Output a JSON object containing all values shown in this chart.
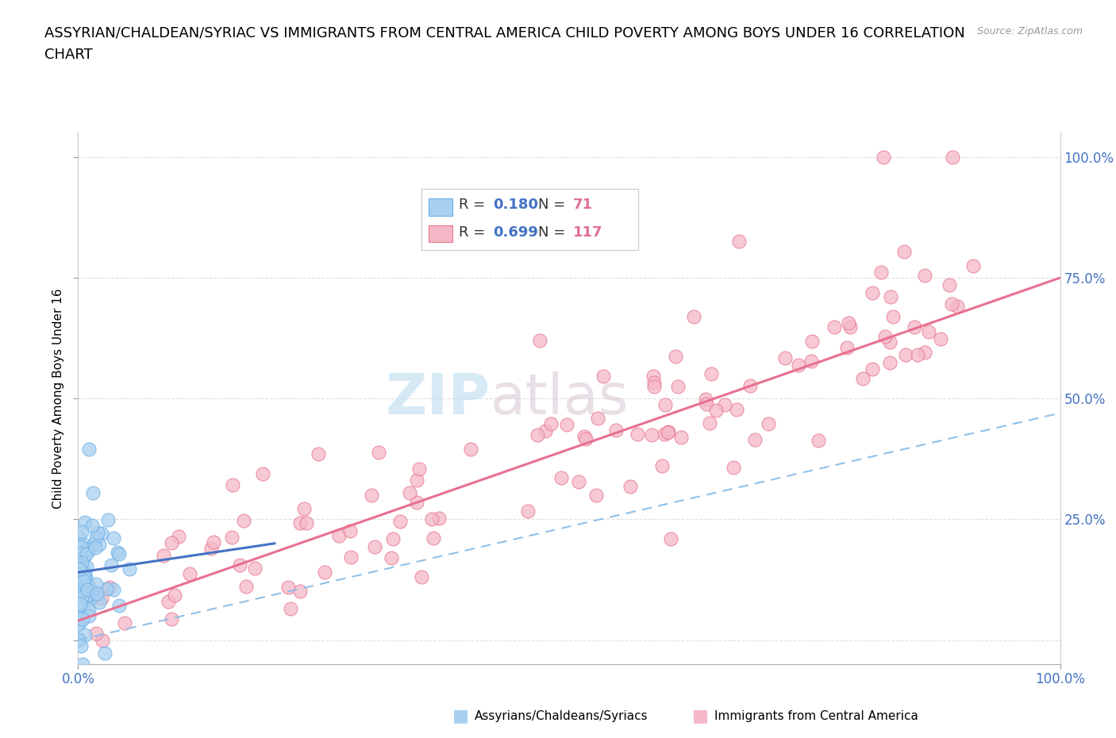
{
  "title_line1": "ASSYRIAN/CHALDEAN/SYRIAC VS IMMIGRANTS FROM CENTRAL AMERICA CHILD POVERTY AMONG BOYS UNDER 16 CORRELATION",
  "title_line2": "CHART",
  "source": "Source: ZipAtlas.com",
  "ylabel": "Child Poverty Among Boys Under 16",
  "xlim": [
    0.0,
    1.0
  ],
  "ylim": [
    -0.05,
    1.05
  ],
  "x_ticks": [
    0.0,
    1.0
  ],
  "y_ticks": [
    0.0,
    0.25,
    0.5,
    0.75,
    1.0
  ],
  "x_tick_labels": [
    "0.0%",
    "100.0%"
  ],
  "y_tick_labels": [
    "",
    "25.0%",
    "50.0%",
    "75.0%",
    "100.0%"
  ],
  "watermark_zip": "ZIP",
  "watermark_atlas": "atlas",
  "series1_color": "#a8d0f0",
  "series2_color": "#f4b8c8",
  "series1_edge_color": "#6aaee8",
  "series2_edge_color": "#e8758a",
  "line1_color": "#4472c4",
  "line2_color": "#e87090",
  "dashed_line_color": "#90c0e8",
  "R1": 0.18,
  "N1": 71,
  "R2": 0.699,
  "N2": 117,
  "legend_label1": "Assyrians/Chaldeans/Syriacs",
  "legend_label2": "Immigrants from Central America",
  "title_fontsize": 13,
  "axis_label_fontsize": 11,
  "tick_fontsize": 12,
  "background_color": "#ffffff",
  "grid_color": "#e0e0e0",
  "seed": 42,
  "blue_line_x0": 0.0,
  "blue_line_y0": 0.14,
  "blue_line_x1": 0.2,
  "blue_line_y1": 0.2,
  "pink_line_x0": 0.0,
  "pink_line_y0": 0.04,
  "pink_line_x1": 1.0,
  "pink_line_y1": 0.75,
  "dash_line_x0": 0.0,
  "dash_line_y0": 0.0,
  "dash_line_x1": 1.0,
  "dash_line_y1": 0.47
}
